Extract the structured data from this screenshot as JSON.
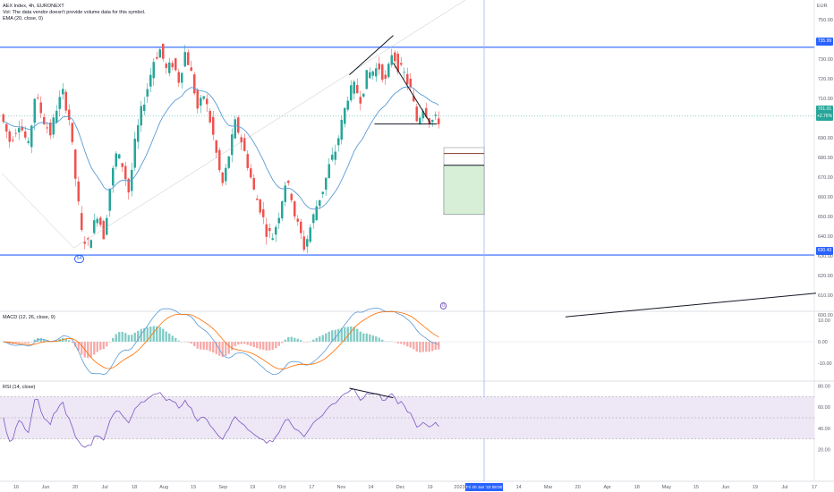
{
  "header": {
    "title": "AEX Index, 4h, EURONEXT",
    "vol_note": "Vol: The data vendor doesn't provide volume data for this symbol.",
    "ema_label": "EMA (20, close, 0)",
    "currency": "EUR"
  },
  "price_tags": {
    "resistance": "735.99",
    "last": "701.01",
    "change": "+2.76%",
    "support": "630.43"
  },
  "badges": {
    "left_marker": "54",
    "right_marker": "0"
  },
  "macd": {
    "label": "MACD (12, 26, close, 9)"
  },
  "rsi": {
    "label": "RSI (14, close)"
  },
  "crosshair_label": "Fri 20 Jan '23  08:00",
  "colors": {
    "up": "#26a69a",
    "down": "#ef5350",
    "ema": "#5b9bd5",
    "hline": "#2962ff",
    "signal": "#ff6d00",
    "rsi": "#7e57c2",
    "rsi_band": "#ede7f6",
    "target_box": "#d7efd7"
  },
  "chart_data": [
    {
      "type": "candlestick",
      "title": "AEX Index, 4h, EURONEXT",
      "ylim": [
        597,
        759
      ],
      "y_ticks": [
        600,
        610,
        620,
        630,
        640,
        650,
        660,
        670,
        680,
        690,
        700,
        710,
        720,
        730,
        740,
        750
      ],
      "x_labels": [
        "16",
        "Jun",
        "20",
        "Jul",
        "18",
        "Aug",
        "15",
        "Sep",
        "19",
        "Oct",
        "17",
        "Nov",
        "14",
        "Dec",
        "19",
        "2023",
        "Feb",
        "14",
        "Mar",
        "20",
        "Apr",
        "18",
        "May",
        "15",
        "Jun",
        "19",
        "Jul",
        "17"
      ],
      "horizontal_lines": [
        735.99,
        630.43
      ],
      "price_path": [
        [
          0,
          702
        ],
        [
          3,
          688
        ],
        [
          6,
          698
        ],
        [
          9,
          685
        ],
        [
          11,
          712
        ],
        [
          14,
          698
        ],
        [
          16,
          692
        ],
        [
          18,
          706
        ],
        [
          20,
          713
        ],
        [
          22,
          699
        ],
        [
          24,
          668
        ],
        [
          26,
          640
        ],
        [
          28,
          636
        ],
        [
          31,
          652
        ],
        [
          33,
          640
        ],
        [
          35,
          666
        ],
        [
          37,
          682
        ],
        [
          39,
          676
        ],
        [
          41,
          662
        ],
        [
          43,
          688
        ],
        [
          45,
          704
        ],
        [
          47,
          716
        ],
        [
          49,
          730
        ],
        [
          51,
          735
        ],
        [
          53,
          724
        ],
        [
          55,
          728
        ],
        [
          57,
          719
        ],
        [
          59,
          734
        ],
        [
          61,
          722
        ],
        [
          63,
          704
        ],
        [
          65,
          712
        ],
        [
          67,
          698
        ],
        [
          68,
          690
        ],
        [
          70,
          672
        ],
        [
          71,
          666
        ],
        [
          73,
          682
        ],
        [
          75,
          698
        ],
        [
          77,
          688
        ],
        [
          79,
          676
        ],
        [
          81,
          662
        ],
        [
          83,
          654
        ],
        [
          85,
          642
        ],
        [
          87,
          640
        ],
        [
          89,
          652
        ],
        [
          91,
          668
        ],
        [
          93,
          660
        ],
        [
          94,
          650
        ],
        [
          96,
          640
        ],
        [
          97,
          634
        ],
        [
          99,
          645
        ],
        [
          101,
          656
        ],
        [
          103,
          664
        ],
        [
          105,
          676
        ],
        [
          107,
          684
        ],
        [
          109,
          698
        ],
        [
          111,
          712
        ],
        [
          113,
          716
        ],
        [
          115,
          710
        ],
        [
          117,
          722
        ],
        [
          119,
          724
        ],
        [
          121,
          726
        ],
        [
          123,
          718
        ],
        [
          125,
          734
        ],
        [
          127,
          726
        ],
        [
          129,
          722
        ],
        [
          131,
          714
        ],
        [
          133,
          698
        ],
        [
          135,
          706
        ],
        [
          137,
          699
        ],
        [
          139,
          699
        ]
      ],
      "series": [
        {
          "name": "EMA (20, close, 0)"
        }
      ],
      "annotations": {
        "triangle_top": [
          [
            111,
            722
          ],
          [
            125,
            742
          ]
        ],
        "triangle_side": [
          [
            125,
            728
          ],
          [
            137,
            697
          ]
        ],
        "triangle_base": [
          [
            119,
            697
          ],
          [
            139,
            697
          ]
        ],
        "long_trend_a": [
          [
            0,
            672
          ],
          [
            23,
            634
          ]
        ],
        "long_trend_b": [
          [
            23,
            634
          ],
          [
            148,
            760
          ]
        ],
        "future_trend": [
          [
            171,
            599
          ],
          [
            252,
            611
          ]
        ],
        "target_levels": [
          685,
          682,
          676,
          651
        ]
      }
    },
    {
      "type": "line",
      "title": "MACD (12, 26, close, 9)",
      "ylim": [
        -14,
        14
      ],
      "y_ticks": [
        10.0,
        0.0,
        -10.0
      ],
      "series": [
        {
          "name": "MACD"
        },
        {
          "name": "Signal"
        },
        {
          "name": "Histogram"
        }
      ]
    },
    {
      "type": "line",
      "title": "RSI (14, close)",
      "ylim": [
        16,
        86
      ],
      "y_ticks": [
        80.0,
        60.0,
        40.0,
        20.0
      ],
      "bands": [
        70,
        30
      ],
      "series": [
        {
          "name": "RSI (14, close)"
        }
      ],
      "divergence_line": [
        [
          111,
          78
        ],
        [
          125,
          69
        ]
      ]
    }
  ]
}
